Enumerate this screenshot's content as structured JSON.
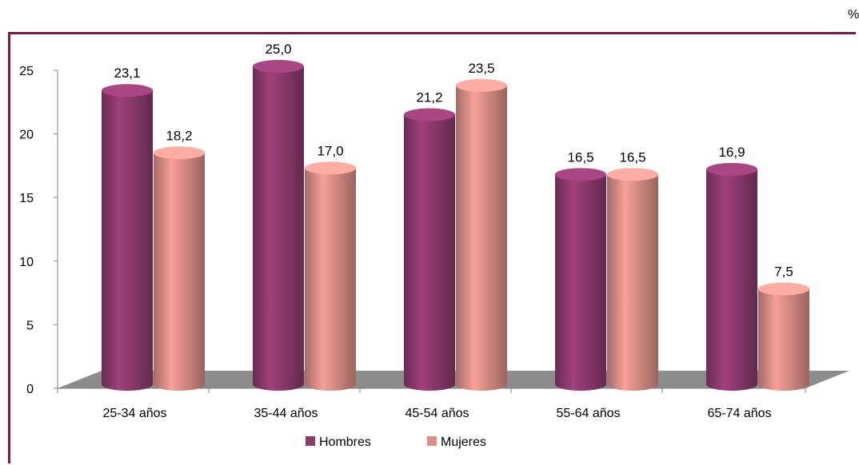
{
  "unit_label": "%",
  "chart_data": {
    "type": "bar",
    "categories": [
      "25-34 años",
      "35-44 años",
      "45-54 años",
      "55-64 años",
      "65-74 años"
    ],
    "series": [
      {
        "name": "Hombres",
        "values": [
          23.1,
          25.0,
          21.2,
          16.5,
          16.9
        ],
        "color": "#8e3a6e"
      },
      {
        "name": "Mujeres",
        "values": [
          18.2,
          17.0,
          23.5,
          16.5,
          7.5
        ],
        "color": "#dc8f88"
      }
    ],
    "data_labels": [
      [
        "23,1",
        "25,0",
        "21,2",
        "16,5",
        "16,9"
      ],
      [
        "18,2",
        "17,0",
        "23,5",
        "16,5",
        "7,5"
      ]
    ],
    "yticks": [
      "0",
      "5",
      "10",
      "15",
      "20",
      "25"
    ],
    "ylim": [
      0,
      25
    ],
    "legend_position": "bottom",
    "grid": false
  }
}
